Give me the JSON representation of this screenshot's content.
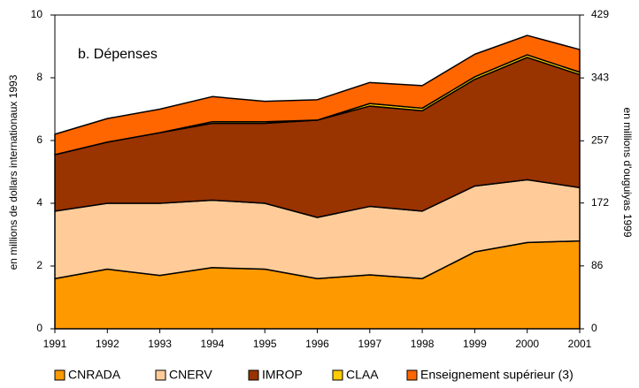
{
  "chart_data": {
    "type": "stacked_area",
    "title": "b. Dépenses",
    "y_label": "en millions de dollars internationaux 1993",
    "y2_label": "en millions d'ouguiyas 1999",
    "x": [
      1991,
      1992,
      1993,
      1994,
      1995,
      1996,
      1997,
      1998,
      1999,
      2000,
      2001
    ],
    "xlim": [
      1991,
      2001
    ],
    "xticks": [
      1991,
      1992,
      1993,
      1994,
      1995,
      1996,
      1997,
      1998,
      1999,
      2000,
      2001
    ],
    "ylim": [
      0,
      10
    ],
    "yticks": [
      0,
      2,
      4,
      6,
      8,
      10
    ],
    "y2lim": [
      0,
      429
    ],
    "y2ticks": [
      0,
      86,
      172,
      257,
      343,
      429
    ],
    "series": [
      {
        "name": "CNRADA",
        "color": "#ff9900",
        "values": [
          1.6,
          1.9,
          1.7,
          1.95,
          1.9,
          1.6,
          1.72,
          1.6,
          2.45,
          2.75,
          2.8
        ]
      },
      {
        "name": "CNERV",
        "color": "#ffcc99",
        "values": [
          2.15,
          2.1,
          2.3,
          2.15,
          2.1,
          1.95,
          2.18,
          2.15,
          2.1,
          2.0,
          1.7
        ]
      },
      {
        "name": "IMROP",
        "color": "#993300",
        "values": [
          1.8,
          1.95,
          2.25,
          2.45,
          2.55,
          3.1,
          3.2,
          3.2,
          3.4,
          3.9,
          3.6
        ]
      },
      {
        "name": "CLAA",
        "color": "#ffcc00",
        "values": [
          0,
          0,
          0,
          0.05,
          0.05,
          0,
          0.08,
          0.08,
          0.08,
          0.08,
          0.08
        ]
      },
      {
        "name": "Enseignement supérieur (3)",
        "color": "#ff6600",
        "values": [
          0.65,
          0.75,
          0.75,
          0.8,
          0.65,
          0.65,
          0.67,
          0.72,
          0.72,
          0.62,
          0.72
        ]
      }
    ]
  }
}
